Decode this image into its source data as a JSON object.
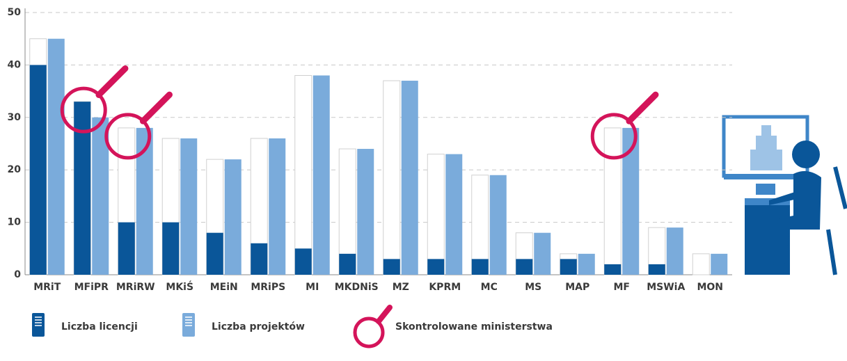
{
  "chart_data": {
    "type": "bar",
    "categories": [
      "MRiT",
      "MFiPR",
      "MRiRW",
      "MKiŚ",
      "MEiN",
      "MRiPS",
      "MI",
      "MKDNiS",
      "MZ",
      "KPRM",
      "MC",
      "MS",
      "MAP",
      "MF",
      "MSWiA",
      "MON"
    ],
    "series": [
      {
        "name": "Liczba licencji",
        "color": "#0a5699",
        "values": [
          40,
          33,
          10,
          10,
          8,
          6,
          5,
          4,
          3,
          3,
          3,
          3,
          3,
          2,
          2,
          0
        ]
      },
      {
        "name": "Liczba projektów",
        "color": "#7aabdb",
        "values": [
          45,
          30,
          28,
          26,
          22,
          26,
          38,
          24,
          37,
          23,
          19,
          8,
          4,
          28,
          9,
          4
        ]
      }
    ],
    "highlight": {
      "name": "Skontrolowane ministerstwa",
      "color": "#d4145a",
      "categories": [
        "MFiPR",
        "MRiRW",
        "MF"
      ]
    },
    "ylim": [
      0,
      50
    ],
    "yticks": [
      0,
      10,
      20,
      30,
      40,
      50
    ],
    "grid": true
  }
}
